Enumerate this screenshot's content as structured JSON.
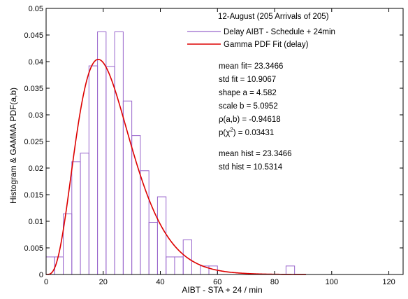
{
  "chart_data": {
    "type": "bar",
    "title": "",
    "xlabel": "AIBT - STA + 24 / min",
    "ylabel": "Histogram & GAMMA PDF(a,b)",
    "xlim": [
      0,
      125
    ],
    "ylim": [
      0,
      0.05
    ],
    "xticks": [
      0,
      20,
      40,
      60,
      80,
      100,
      120
    ],
    "yticks": [
      0,
      0.005,
      0.01,
      0.015,
      0.02,
      0.025,
      0.03,
      0.035,
      0.04,
      0.045,
      0.05
    ],
    "ytick_labels": [
      "0",
      "0.005",
      "0.01",
      "0.015",
      "0.02",
      "0.025",
      "0.03",
      "0.035",
      "0.04",
      "0.045",
      "0.05"
    ],
    "grid": false,
    "legend_placement": "top-right",
    "annotation_title": "12-August (205 Arrivals of 205)",
    "series": [
      {
        "name": "Delay AIBT - Schedule + 24min",
        "type": "histogram",
        "color": "#9966cc",
        "bin_width": 3,
        "bin_starts": [
          0,
          3,
          6,
          9,
          12,
          15,
          18,
          21,
          24,
          27,
          30,
          33,
          36,
          39,
          42,
          45,
          48,
          51,
          54,
          57,
          60,
          63,
          66,
          69,
          72,
          75,
          78,
          81,
          84,
          87
        ],
        "values": [
          0.0033,
          0.0033,
          0.0114,
          0.0212,
          0.0228,
          0.0392,
          0.0456,
          0.0391,
          0.0456,
          0.0326,
          0.0261,
          0.0195,
          0.0098,
          0.0146,
          0.0033,
          0.0033,
          0.0065,
          0.0,
          0.0016,
          0.0016,
          0.0,
          0.0,
          0.0,
          0.0,
          0.0,
          0.0,
          0.0,
          0.0,
          0.0016,
          0.0
        ]
      },
      {
        "name": "Gamma PDF Fit (delay)",
        "type": "line",
        "color": "#dd0000",
        "shape": 4.582,
        "scale": 5.0952,
        "x_range": [
          0,
          91
        ]
      }
    ],
    "stats_block_1": [
      "mean fit= 23.3466",
      "std fit = 10.9067",
      "shape a = 4.582",
      "scale b = 5.0952",
      "ρ(a,b) = -0.94618"
    ],
    "stat_p_prefix": "p(χ",
    "stat_p_sup": "2",
    "stat_p_suffix": ") = 0.03431",
    "stats_block_2": [
      "mean hist = 23.3466",
      "std hist = 10.5314"
    ]
  }
}
